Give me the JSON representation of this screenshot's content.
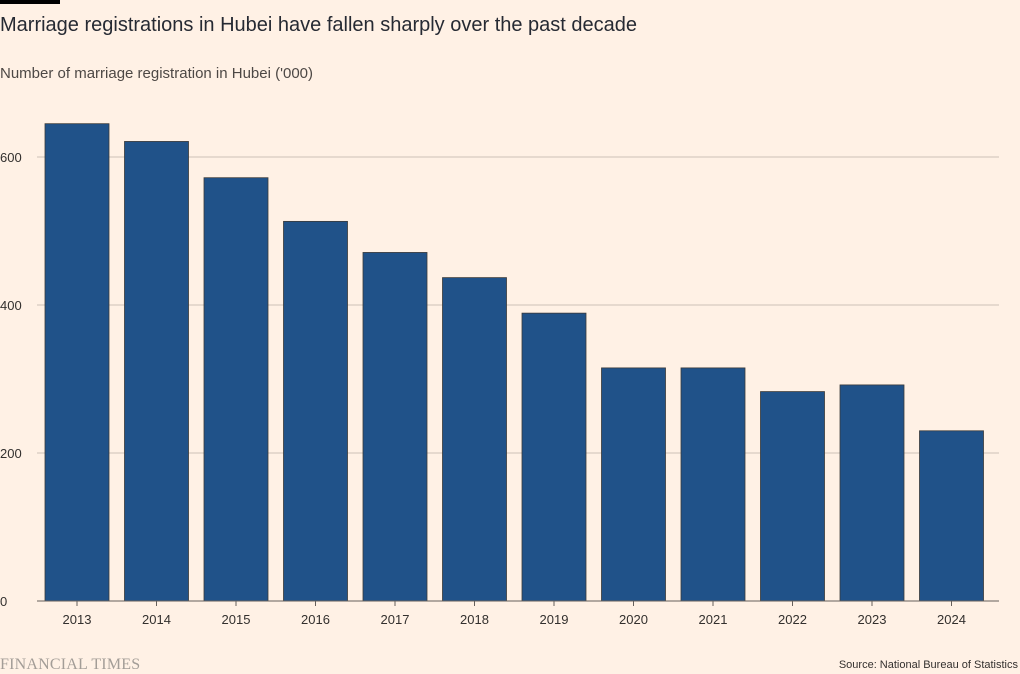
{
  "header": {
    "title": "Marriage registrations in Hubei have fallen sharply over the past decade",
    "subtitle": "Number of marriage registration in Hubei ('000)"
  },
  "footer": {
    "brand": "FINANCIAL TIMES",
    "source": "Source: National Bureau of Statistics"
  },
  "colors": {
    "background": "#fff1e5",
    "bar": "#205289",
    "gridline": "#ccc1b7",
    "text": "#33302e"
  },
  "chart_data": {
    "type": "bar",
    "title": "Marriage registrations in Hubei have fallen sharply over the past decade",
    "ylabel": "Number of marriage registration in Hubei ('000)",
    "xlabel": "",
    "categories": [
      "2013",
      "2014",
      "2015",
      "2016",
      "2017",
      "2018",
      "2019",
      "2020",
      "2021",
      "2022",
      "2023",
      "2024"
    ],
    "values": [
      645,
      621,
      572,
      513,
      471,
      437,
      389,
      315,
      315,
      283,
      292,
      230
    ],
    "yticks": [
      0,
      200,
      400,
      600
    ],
    "ylim": [
      0,
      650
    ],
    "grid": true,
    "legend": "none"
  }
}
